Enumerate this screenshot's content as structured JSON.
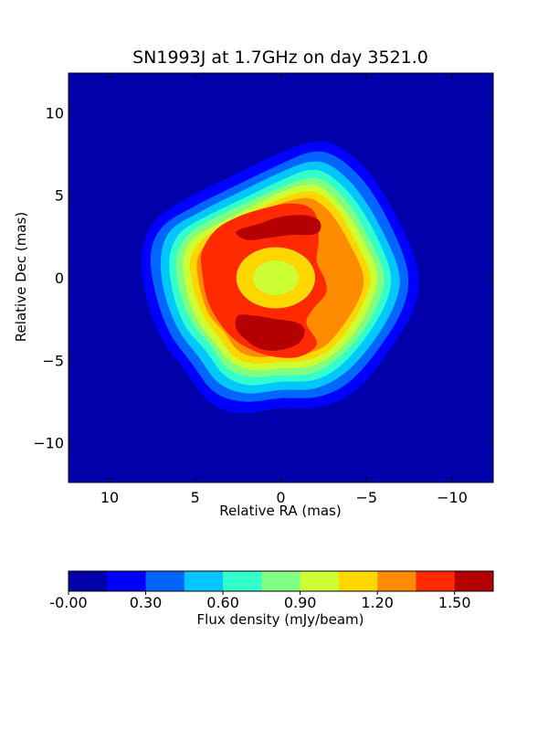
{
  "chart_data": {
    "type": "heatmap",
    "title": "SN1993J at 1.7GHz on day 3521.0",
    "xlabel": "Relative RA (mas)",
    "ylabel": "Relative Dec (mas)",
    "xlim": [
      12.4,
      -12.4
    ],
    "ylim": [
      -12.4,
      12.4
    ],
    "x_ticks": [
      10,
      5,
      0,
      -5,
      -10
    ],
    "x_tick_labels": [
      "10",
      "5",
      "0",
      "−5",
      "−10"
    ],
    "y_ticks": [
      10,
      5,
      0,
      -5,
      -10
    ],
    "y_tick_labels": [
      "10",
      "5",
      "0",
      "−5",
      "−10"
    ],
    "background_color": "#0000aa",
    "contour_levels": [
      {
        "level": 0.15,
        "color": "#0000ff",
        "points": [
          [
            7.9,
            -1.0
          ],
          [
            8.1,
            1.5
          ],
          [
            7.4,
            3.4
          ],
          [
            5.5,
            4.8
          ],
          [
            2.8,
            6.2
          ],
          [
            0.2,
            7.5
          ],
          [
            -1.8,
            8.2
          ],
          [
            -3.3,
            8.0
          ],
          [
            -5.2,
            6.3
          ],
          [
            -6.8,
            3.6
          ],
          [
            -8.0,
            0.5
          ],
          [
            -7.7,
            -2.0
          ],
          [
            -6.2,
            -4.6
          ],
          [
            -4.4,
            -6.8
          ],
          [
            -2.4,
            -7.8
          ],
          [
            0.0,
            -7.9
          ],
          [
            2.4,
            -8.2
          ],
          [
            4.2,
            -7.5
          ],
          [
            5.6,
            -5.6
          ],
          [
            7.0,
            -3.6
          ]
        ]
      },
      {
        "level": 0.3,
        "color": "#0066ff",
        "points": [
          [
            7.3,
            -1.0
          ],
          [
            7.6,
            1.4
          ],
          [
            6.9,
            3.1
          ],
          [
            5.1,
            4.3
          ],
          [
            2.6,
            5.6
          ],
          [
            0.2,
            6.8
          ],
          [
            -1.7,
            7.6
          ],
          [
            -3.1,
            7.4
          ],
          [
            -4.8,
            5.9
          ],
          [
            -6.3,
            3.4
          ],
          [
            -7.4,
            0.4
          ],
          [
            -7.1,
            -1.9
          ],
          [
            -5.7,
            -4.3
          ],
          [
            -4.0,
            -6.3
          ],
          [
            -2.2,
            -7.2
          ],
          [
            0.0,
            -7.3
          ],
          [
            2.2,
            -7.5
          ],
          [
            3.9,
            -6.9
          ],
          [
            5.2,
            -5.2
          ],
          [
            6.5,
            -3.3
          ]
        ]
      },
      {
        "level": 0.45,
        "color": "#00c8ff",
        "points": [
          [
            6.8,
            -0.9
          ],
          [
            7.0,
            1.3
          ],
          [
            6.4,
            2.9
          ],
          [
            4.7,
            4.0
          ],
          [
            2.4,
            5.2
          ],
          [
            0.2,
            6.3
          ],
          [
            -1.6,
            7.0
          ],
          [
            -2.9,
            6.8
          ],
          [
            -4.4,
            5.4
          ],
          [
            -5.8,
            3.1
          ],
          [
            -6.9,
            0.3
          ],
          [
            -6.6,
            -1.7
          ],
          [
            -5.3,
            -4.0
          ],
          [
            -3.7,
            -5.8
          ],
          [
            -2.0,
            -6.7
          ],
          [
            0.0,
            -6.8
          ],
          [
            2.0,
            -7.0
          ],
          [
            3.6,
            -6.4
          ],
          [
            4.8,
            -4.8
          ],
          [
            6.0,
            -3.1
          ]
        ]
      },
      {
        "level": 0.6,
        "color": "#33ffcc",
        "points": [
          [
            6.3,
            -0.9
          ],
          [
            6.5,
            1.2
          ],
          [
            5.9,
            2.7
          ],
          [
            4.4,
            3.7
          ],
          [
            2.2,
            4.8
          ],
          [
            0.2,
            5.8
          ],
          [
            -1.5,
            6.5
          ],
          [
            -2.7,
            6.3
          ],
          [
            -4.1,
            5.0
          ],
          [
            -5.4,
            2.9
          ],
          [
            -6.4,
            0.3
          ],
          [
            -6.1,
            -1.6
          ],
          [
            -4.9,
            -3.7
          ],
          [
            -3.4,
            -5.4
          ],
          [
            -1.9,
            -6.2
          ],
          [
            0.0,
            -6.3
          ],
          [
            1.9,
            -6.5
          ],
          [
            3.3,
            -5.9
          ],
          [
            4.4,
            -4.4
          ],
          [
            5.6,
            -2.9
          ]
        ]
      },
      {
        "level": 0.75,
        "color": "#80ff80",
        "points": [
          [
            5.9,
            -0.8
          ],
          [
            6.1,
            1.1
          ],
          [
            5.5,
            2.5
          ],
          [
            4.1,
            3.5
          ],
          [
            2.1,
            4.5
          ],
          [
            0.2,
            5.4
          ],
          [
            -1.4,
            6.0
          ],
          [
            -2.5,
            5.9
          ],
          [
            -3.8,
            4.7
          ],
          [
            -5.0,
            2.7
          ],
          [
            -6.0,
            0.3
          ],
          [
            -5.7,
            -1.5
          ],
          [
            -4.6,
            -3.5
          ],
          [
            -3.2,
            -5.0
          ],
          [
            -1.8,
            -5.8
          ],
          [
            0.0,
            -5.9
          ],
          [
            1.8,
            -6.0
          ],
          [
            3.1,
            -5.5
          ],
          [
            4.1,
            -4.1
          ],
          [
            5.2,
            -2.7
          ]
        ]
      },
      {
        "level": 0.9,
        "color": "#ccff33",
        "points": [
          [
            5.5,
            -0.8
          ],
          [
            5.7,
            1.0
          ],
          [
            5.2,
            2.3
          ],
          [
            3.8,
            3.2
          ],
          [
            1.9,
            4.2
          ],
          [
            0.2,
            5.1
          ],
          [
            -1.3,
            5.6
          ],
          [
            -2.3,
            5.5
          ],
          [
            -3.5,
            4.4
          ],
          [
            -4.7,
            2.5
          ],
          [
            -5.6,
            0.3
          ],
          [
            -5.3,
            -1.4
          ],
          [
            -4.3,
            -3.3
          ],
          [
            -3.0,
            -4.7
          ],
          [
            -1.6,
            -5.4
          ],
          [
            0.0,
            -5.5
          ],
          [
            1.6,
            -5.6
          ],
          [
            2.9,
            -5.1
          ],
          [
            3.9,
            -3.9
          ],
          [
            4.9,
            -2.5
          ]
        ]
      },
      {
        "level": 1.05,
        "color": "#ffd700",
        "points": [
          [
            5.1,
            -0.7
          ],
          [
            5.3,
            1.0
          ],
          [
            4.8,
            2.1
          ],
          [
            3.6,
            3.0
          ],
          [
            1.8,
            3.9
          ],
          [
            0.2,
            4.7
          ],
          [
            -1.2,
            5.2
          ],
          [
            -2.2,
            5.1
          ],
          [
            -3.3,
            4.1
          ],
          [
            -4.3,
            2.3
          ],
          [
            -5.2,
            0.2
          ],
          [
            -4.9,
            -1.3
          ],
          [
            -4.0,
            -3.0
          ],
          [
            -2.8,
            -4.4
          ],
          [
            -1.5,
            -5.0
          ],
          [
            0.0,
            -5.1
          ],
          [
            1.5,
            -5.2
          ],
          [
            2.7,
            -4.8
          ],
          [
            3.6,
            -3.6
          ],
          [
            4.5,
            -2.3
          ]
        ]
      },
      {
        "level": 1.2,
        "color": "#ff8c00",
        "points": [
          [
            4.7,
            -0.7
          ],
          [
            4.9,
            0.9
          ],
          [
            4.4,
            2.0
          ],
          [
            3.3,
            2.8
          ],
          [
            1.7,
            3.6
          ],
          [
            0.2,
            4.4
          ],
          [
            -1.1,
            4.8
          ],
          [
            -2.0,
            4.7
          ],
          [
            -3.0,
            3.8
          ],
          [
            -4.0,
            2.1
          ],
          [
            -4.8,
            0.2
          ],
          [
            -4.6,
            -1.2
          ],
          [
            -3.7,
            -2.8
          ],
          [
            -2.6,
            -4.1
          ],
          [
            -1.4,
            -4.6
          ],
          [
            0.0,
            -4.7
          ],
          [
            1.4,
            -4.8
          ],
          [
            2.5,
            -4.4
          ],
          [
            3.3,
            -3.3
          ],
          [
            4.2,
            -2.2
          ]
        ]
      },
      {
        "level": 1.35,
        "color": "#ff2a00",
        "points": [
          [
            4.6,
            0.4
          ],
          [
            4.6,
            1.6
          ],
          [
            3.8,
            2.9
          ],
          [
            2.5,
            3.7
          ],
          [
            1.0,
            4.2
          ],
          [
            -0.4,
            4.5
          ],
          [
            -1.6,
            4.3
          ],
          [
            -2.1,
            3.6
          ],
          [
            -2.2,
            2.2
          ],
          [
            -2.1,
            1.0
          ],
          [
            -2.6,
            -0.2
          ],
          [
            -2.6,
            -1.0
          ],
          [
            -1.8,
            -2.0
          ],
          [
            -1.5,
            -2.8
          ],
          [
            -2.1,
            -4.0
          ],
          [
            -1.0,
            -4.8
          ],
          [
            0.8,
            -4.7
          ],
          [
            2.5,
            -3.9
          ],
          [
            3.6,
            -2.7
          ],
          [
            4.3,
            -1.3
          ]
        ],
        "hole": {
          "cx": 0.3,
          "cy": 0.0,
          "rx": 2.3,
          "ry": 1.85
        }
      },
      {
        "level": 1.5,
        "color": "#b40000",
        "points": [
          [
            2.6,
            2.8
          ],
          [
            1.2,
            3.3
          ],
          [
            0.0,
            3.7
          ],
          [
            -1.3,
            3.8
          ],
          [
            -2.2,
            3.5
          ],
          [
            -2.3,
            2.9
          ],
          [
            -1.8,
            2.6
          ],
          [
            -0.6,
            2.6
          ],
          [
            0.8,
            2.4
          ],
          [
            2.0,
            2.3
          ]
        ]
      },
      {
        "level": 1.5,
        "color": "#b40000",
        "points": [
          [
            2.5,
            -2.3
          ],
          [
            1.5,
            -2.3
          ],
          [
            0.3,
            -2.5
          ],
          [
            -0.9,
            -2.7
          ],
          [
            -1.4,
            -3.2
          ],
          [
            -1.0,
            -4.0
          ],
          [
            0.2,
            -4.4
          ],
          [
            1.2,
            -4.3
          ],
          [
            2.0,
            -3.8
          ],
          [
            2.6,
            -3.1
          ]
        ]
      },
      {
        "level": 0.9,
        "color": "#ccff33",
        "ellipse": {
          "cx": 0.3,
          "cy": 0.0,
          "rx": 1.35,
          "ry": 1.05
        }
      },
      {
        "level": 1.05,
        "color": "#ffd700",
        "ellipse_ring": {
          "cx": 0.3,
          "cy": 0.0,
          "rx": 2.3,
          "ry": 1.85,
          "inner_rx": 1.35,
          "inner_ry": 1.05
        }
      }
    ]
  },
  "colorbar": {
    "label": "Flux density (mJy/beam)",
    "colors": [
      "#0000aa",
      "#0000ff",
      "#0066ff",
      "#00c8ff",
      "#33ffcc",
      "#80ff80",
      "#ccff33",
      "#ffd700",
      "#ff8c00",
      "#ff2a00",
      "#b40000"
    ],
    "ticks": [
      0.0,
      0.3,
      0.6,
      0.9,
      1.2,
      1.5
    ],
    "tick_labels": [
      "-0.00",
      "0.30",
      "0.60",
      "0.90",
      "1.20",
      "1.50"
    ],
    "range": [
      0.0,
      1.65
    ]
  }
}
